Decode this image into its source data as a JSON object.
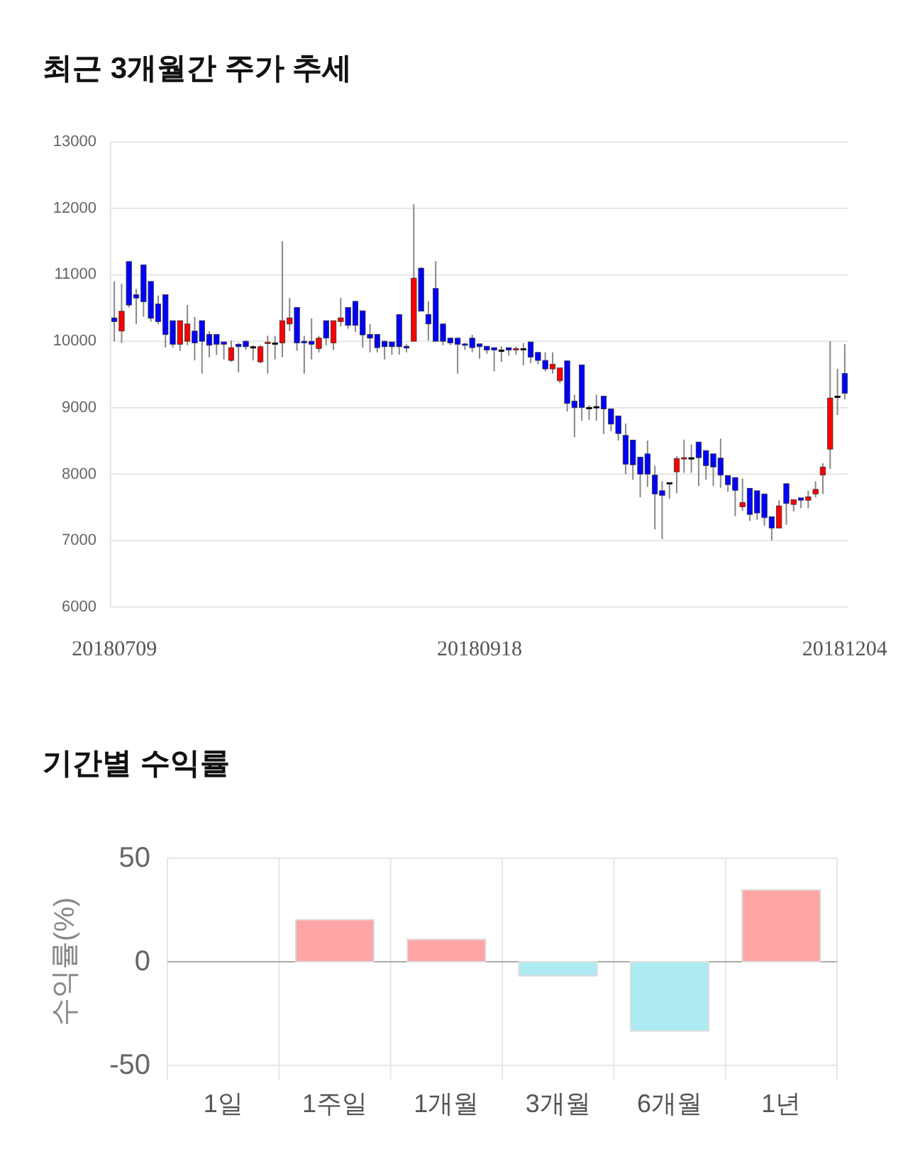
{
  "chart_data": [
    {
      "type": "candlestick",
      "title": "최근 3개월간 주가 추세",
      "categories": [
        "20180709",
        null,
        null,
        null,
        null,
        null,
        null,
        null,
        null,
        null,
        null,
        null,
        null,
        null,
        null,
        null,
        null,
        null,
        null,
        null,
        null,
        null,
        null,
        null,
        null,
        null,
        null,
        null,
        null,
        null,
        null,
        null,
        null,
        null,
        null,
        null,
        null,
        null,
        null,
        null,
        null,
        null,
        null,
        null,
        null,
        null,
        null,
        null,
        null,
        null,
        "20180918",
        null,
        null,
        null,
        null,
        null,
        null,
        null,
        null,
        null,
        null,
        null,
        null,
        null,
        null,
        null,
        null,
        null,
        null,
        null,
        null,
        null,
        null,
        null,
        null,
        null,
        null,
        null,
        null,
        null,
        null,
        null,
        null,
        null,
        null,
        null,
        null,
        null,
        null,
        null,
        null,
        null,
        null,
        null,
        null,
        null,
        null,
        null,
        null,
        null,
        "20181204"
      ],
      "ohlc": [
        [
          10352,
          10900,
          10000,
          10295
        ],
        [
          10153,
          10865,
          9975,
          10452
        ],
        [
          11199,
          11200,
          10509,
          10545
        ],
        [
          10700,
          10790,
          10260,
          10650
        ],
        [
          11150,
          11150,
          10370,
          10595
        ],
        [
          10900,
          10900,
          10295,
          10345
        ],
        [
          10560,
          10690,
          10260,
          10295
        ],
        [
          10700,
          10700,
          9905,
          10100
        ],
        [
          10310,
          10310,
          9905,
          9955
        ],
        [
          9955,
          10310,
          9855,
          10310
        ],
        [
          10000,
          10545,
          9940,
          10260
        ],
        [
          10153,
          10367,
          9712,
          9975
        ],
        [
          10310,
          10310,
          9513,
          10000
        ],
        [
          10103,
          10153,
          9760,
          9940
        ],
        [
          10103,
          10103,
          9797,
          9955
        ],
        [
          9990,
          9990,
          9726,
          9955
        ],
        [
          9712,
          10011,
          9690,
          9904
        ],
        [
          9955,
          9975,
          9534,
          9918
        ],
        [
          10000,
          10011,
          9868,
          9918
        ],
        [
          9918,
          9940,
          9712,
          9918
        ],
        [
          9690,
          9940,
          9669,
          9918
        ],
        [
          9970,
          10082,
          9513,
          9985
        ],
        [
          9975,
          10082,
          9726,
          9975
        ],
        [
          9975,
          11505,
          9760,
          10310
        ],
        [
          10260,
          10652,
          10153,
          10352
        ],
        [
          10509,
          10509,
          9855,
          9975
        ],
        [
          10000,
          10082,
          9513,
          9975
        ],
        [
          10000,
          10345,
          9726,
          9955
        ],
        [
          9890,
          10082,
          9833,
          10047
        ],
        [
          10310,
          10310,
          9940,
          10047
        ],
        [
          9975,
          10310,
          9868,
          10310
        ],
        [
          10295,
          10652,
          10224,
          10352
        ],
        [
          10509,
          10509,
          10189,
          10239
        ],
        [
          10601,
          10601,
          10140,
          10239
        ],
        [
          10459,
          10459,
          9904,
          10096
        ],
        [
          10103,
          10260,
          9833,
          10047
        ],
        [
          10103,
          10103,
          9833,
          9904
        ],
        [
          10000,
          10011,
          9726,
          9918
        ],
        [
          9990,
          9990,
          9797,
          9918
        ],
        [
          10402,
          10402,
          9797,
          9918
        ],
        [
          9925,
          9955,
          9833,
          9897
        ],
        [
          10000,
          12061,
          10000,
          10950
        ],
        [
          11100,
          11114,
          10452,
          10452
        ],
        [
          10402,
          10601,
          10011,
          10260
        ],
        [
          10794,
          11207,
          10000,
          10000
        ],
        [
          10260,
          10260,
          9940,
          10000
        ],
        [
          10047,
          10047,
          9940,
          9975
        ],
        [
          10047,
          10047,
          9513,
          9955
        ],
        [
          9960,
          9975,
          9868,
          9950
        ],
        [
          10047,
          10096,
          9833,
          9904
        ],
        [
          9961,
          9961,
          9740,
          9918
        ],
        [
          9925,
          9925,
          9811,
          9868
        ],
        [
          9904,
          9904,
          9548,
          9868
        ],
        [
          9868,
          9925,
          9690,
          9868
        ],
        [
          9904,
          9904,
          9783,
          9868
        ],
        [
          9868,
          9925,
          9797,
          9890
        ],
        [
          9890,
          9975,
          9640,
          9890
        ],
        [
          9990,
          9990,
          9669,
          9762
        ],
        [
          9833,
          9833,
          9655,
          9712
        ],
        [
          9712,
          9833,
          9548,
          9584
        ],
        [
          9584,
          9833,
          9513,
          9655
        ],
        [
          9406,
          9598,
          9370,
          9598
        ],
        [
          9705,
          9705,
          8943,
          9064
        ],
        [
          9100,
          9196,
          8555,
          9000
        ],
        [
          9644,
          9644,
          8804,
          9004
        ],
        [
          9004,
          9039,
          8819,
          9004
        ],
        [
          9018,
          9196,
          8804,
          9018
        ],
        [
          9174,
          9174,
          8605,
          8982
        ],
        [
          8982,
          8982,
          8648,
          8754
        ],
        [
          8876,
          8876,
          8505,
          8612
        ],
        [
          8584,
          8762,
          8000,
          8150
        ],
        [
          8513,
          8513,
          7915,
          8142
        ],
        [
          8256,
          8256,
          7651,
          8000
        ],
        [
          8306,
          8505,
          7808,
          8000
        ],
        [
          7986,
          8128,
          7167,
          7701
        ],
        [
          7751,
          7893,
          7025,
          7680
        ],
        [
          7872,
          7872,
          7630,
          7872
        ],
        [
          8036,
          8271,
          7715,
          8235
        ],
        [
          8235,
          8520,
          8021,
          8250
        ],
        [
          8249,
          8449,
          8021,
          8249
        ],
        [
          8484,
          8484,
          7822,
          8249
        ],
        [
          8356,
          8356,
          7915,
          8128
        ],
        [
          8306,
          8306,
          7822,
          8107
        ],
        [
          8242,
          8534,
          7794,
          7986
        ],
        [
          7979,
          7979,
          7737,
          7843
        ],
        [
          7950,
          7950,
          7367,
          7758
        ],
        [
          7509,
          7936,
          7452,
          7573
        ],
        [
          7787,
          7787,
          7296,
          7395
        ],
        [
          7751,
          7751,
          7310,
          7417
        ],
        [
          7701,
          7701,
          7224,
          7346
        ],
        [
          7360,
          7360,
          7004,
          7189
        ],
        [
          7189,
          7609,
          7189,
          7523
        ],
        [
          7858,
          7858,
          7239,
          7559
        ],
        [
          7545,
          7616,
          7438,
          7616
        ],
        [
          7644,
          7644,
          7488,
          7609
        ],
        [
          7609,
          7751,
          7488,
          7659
        ],
        [
          7701,
          7893,
          7651,
          7772
        ],
        [
          7986,
          8164,
          7701,
          8107
        ],
        [
          8377,
          10000,
          8078,
          9146
        ],
        [
          9174,
          9587,
          8890,
          9174
        ],
        [
          9516,
          9957,
          9125,
          9217
        ]
      ],
      "colors": [
        "#0000ff",
        "#ff0000",
        "#0000ff",
        "#0000ff",
        "#0000ff",
        "#0000ff",
        "#0000ff",
        "#0000ff",
        "#0000ff",
        "#ff0000",
        "#ff0000",
        "#0000ff",
        "#0000ff",
        "#0000ff",
        "#0000ff",
        "#0000ff",
        "#ff0000",
        "#0000ff",
        "#0000ff",
        "#000000",
        "#ff0000",
        "#ff0000",
        "#000000",
        "#ff0000",
        "#ff0000",
        "#0000ff",
        "#0000ff",
        "#0000ff",
        "#ff0000",
        "#0000ff",
        "#ff0000",
        "#ff0000",
        "#0000ff",
        "#0000ff",
        "#0000ff",
        "#0000ff",
        "#0000ff",
        "#0000ff",
        "#0000ff",
        "#0000ff",
        "#0000ff",
        "#ff0000",
        "#0000ff",
        "#0000ff",
        "#0000ff",
        "#0000ff",
        "#0000ff",
        "#0000ff",
        "#0000ff",
        "#0000ff",
        "#0000ff",
        "#0000ff",
        "#0000ff",
        "#000000",
        "#0000ff",
        "#ff0000",
        "#000000",
        "#0000ff",
        "#0000ff",
        "#0000ff",
        "#ff0000",
        "#ff0000",
        "#0000ff",
        "#0000ff",
        "#0000ff",
        "#000000",
        "#000000",
        "#0000ff",
        "#0000ff",
        "#0000ff",
        "#0000ff",
        "#0000ff",
        "#0000ff",
        "#0000ff",
        "#0000ff",
        "#0000ff",
        "#000000",
        "#ff0000",
        "#ff0000",
        "#000000",
        "#0000ff",
        "#0000ff",
        "#0000ff",
        "#0000ff",
        "#0000ff",
        "#0000ff",
        "#ff0000",
        "#0000ff",
        "#0000ff",
        "#0000ff",
        "#0000ff",
        "#ff0000",
        "#0000ff",
        "#ff0000",
        "#0000ff",
        "#ff0000",
        "#ff0000",
        "#ff0000",
        "#ff0000",
        "#000000",
        "#0000ff"
      ],
      "ylim": [
        6000,
        13000
      ],
      "yticks": [
        6000,
        7000,
        8000,
        9000,
        10000,
        11000,
        12000,
        13000
      ],
      "grid": "y"
    },
    {
      "type": "bar",
      "title": "기간별 수익률",
      "ylabel": "수익률(%)",
      "categories": [
        "1일",
        "1주일",
        "1개월",
        "3개월",
        "6개월",
        "1년"
      ],
      "values": [
        0,
        20.3,
        10.8,
        -6.8,
        -33.4,
        34.7
      ],
      "colors": [
        "#ffa5a5",
        "#ffa5a5",
        "#ffa5a5",
        "#aeeaf2",
        "#aeeaf2",
        "#ffa5a5"
      ],
      "ylim": [
        -50,
        50
      ],
      "yticks": [
        -50,
        0,
        50
      ],
      "grid": true
    }
  ]
}
